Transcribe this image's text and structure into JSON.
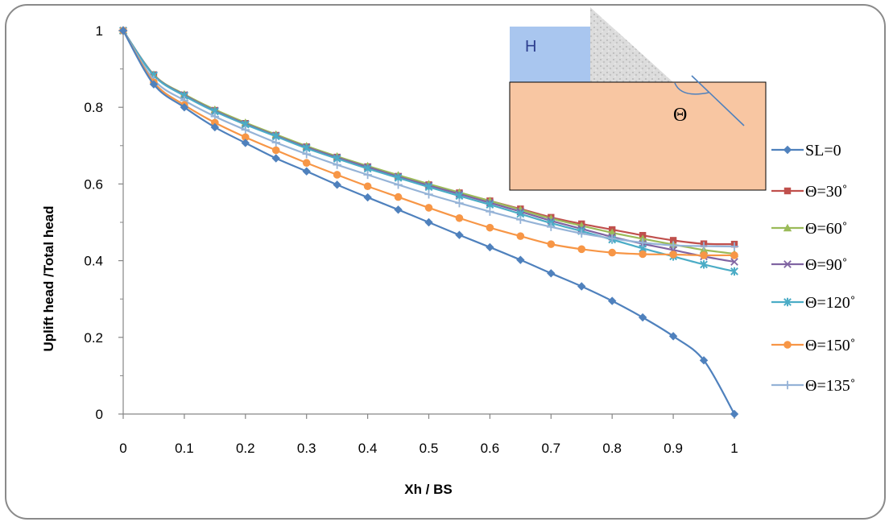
{
  "chart_data": {
    "type": "line",
    "xlabel": "Xh / BS",
    "ylabel": "Uplift head /Total head",
    "xlim": [
      0,
      1
    ],
    "ylim": [
      0,
      1
    ],
    "x_ticks": [
      "0",
      "0.1",
      "0.2",
      "0.3",
      "0.4",
      "0.5",
      "0.6",
      "0.7",
      "0.8",
      "0.9",
      "1"
    ],
    "y_ticks": [
      "0",
      "0.2",
      "0.4",
      "0.6",
      "0.8",
      "1"
    ],
    "x": [
      0,
      0.05,
      0.1,
      0.15,
      0.2,
      0.25,
      0.3,
      0.35,
      0.4,
      0.45,
      0.5,
      0.55,
      0.6,
      0.65,
      0.7,
      0.75,
      0.8,
      0.85,
      0.9,
      0.95,
      1
    ],
    "grid": false,
    "legend_position": "right",
    "series": [
      {
        "name": "SL=0",
        "color": "#4f81bd",
        "marker": "diamond",
        "values": [
          1,
          0.86,
          0.8,
          0.748,
          0.707,
          0.667,
          0.633,
          0.598,
          0.565,
          0.533,
          0.5,
          0.467,
          0.435,
          0.402,
          0.367,
          0.333,
          0.295,
          0.252,
          0.203,
          0.14,
          0
        ]
      },
      {
        "name": "Θ=30˚",
        "color": "#c0504d",
        "marker": "square",
        "values": [
          1,
          0.885,
          0.832,
          0.792,
          0.758,
          0.727,
          0.697,
          0.67,
          0.645,
          0.62,
          0.598,
          0.577,
          0.556,
          0.535,
          0.513,
          0.496,
          0.481,
          0.466,
          0.453,
          0.444,
          0.443
        ]
      },
      {
        "name": "Θ=60˚",
        "color": "#9bbb59",
        "marker": "triangle",
        "values": [
          1,
          0.885,
          0.834,
          0.794,
          0.76,
          0.729,
          0.699,
          0.672,
          0.647,
          0.623,
          0.6,
          0.578,
          0.556,
          0.533,
          0.51,
          0.491,
          0.473,
          0.457,
          0.442,
          0.428,
          0.418
        ]
      },
      {
        "name": "Θ=90˚",
        "color": "#8064a2",
        "marker": "x",
        "values": [
          1,
          0.884,
          0.832,
          0.791,
          0.757,
          0.726,
          0.696,
          0.669,
          0.644,
          0.619,
          0.596,
          0.574,
          0.551,
          0.528,
          0.504,
          0.483,
          0.462,
          0.444,
          0.428,
          0.411,
          0.397
        ]
      },
      {
        "name": "Θ=120˚",
        "color": "#4bacc6",
        "marker": "star",
        "values": [
          1,
          0.883,
          0.83,
          0.789,
          0.755,
          0.724,
          0.693,
          0.666,
          0.64,
          0.616,
          0.592,
          0.569,
          0.546,
          0.522,
          0.498,
          0.477,
          0.455,
          0.432,
          0.411,
          0.39,
          0.372
        ]
      },
      {
        "name": "Θ=150˚",
        "color": "#f79646",
        "marker": "circle",
        "values": [
          1,
          0.865,
          0.806,
          0.76,
          0.722,
          0.688,
          0.655,
          0.624,
          0.594,
          0.566,
          0.538,
          0.511,
          0.486,
          0.464,
          0.443,
          0.43,
          0.421,
          0.417,
          0.416,
          0.414,
          0.414
        ]
      },
      {
        "name": "Θ=135˚",
        "color": "#95b3d7",
        "marker": "plus",
        "values": [
          1,
          0.872,
          0.818,
          0.776,
          0.741,
          0.708,
          0.678,
          0.65,
          0.624,
          0.598,
          0.573,
          0.55,
          0.528,
          0.507,
          0.488,
          0.471,
          0.458,
          0.447,
          0.44,
          0.438,
          0.437
        ]
      }
    ]
  },
  "inset": {
    "h_label": "H",
    "theta_label": "Θ",
    "water_color": "#a9c6ef",
    "soil_color": "#f8c6a2",
    "fill_color": "#d9d9d9",
    "line_color": "#4f81bd"
  }
}
